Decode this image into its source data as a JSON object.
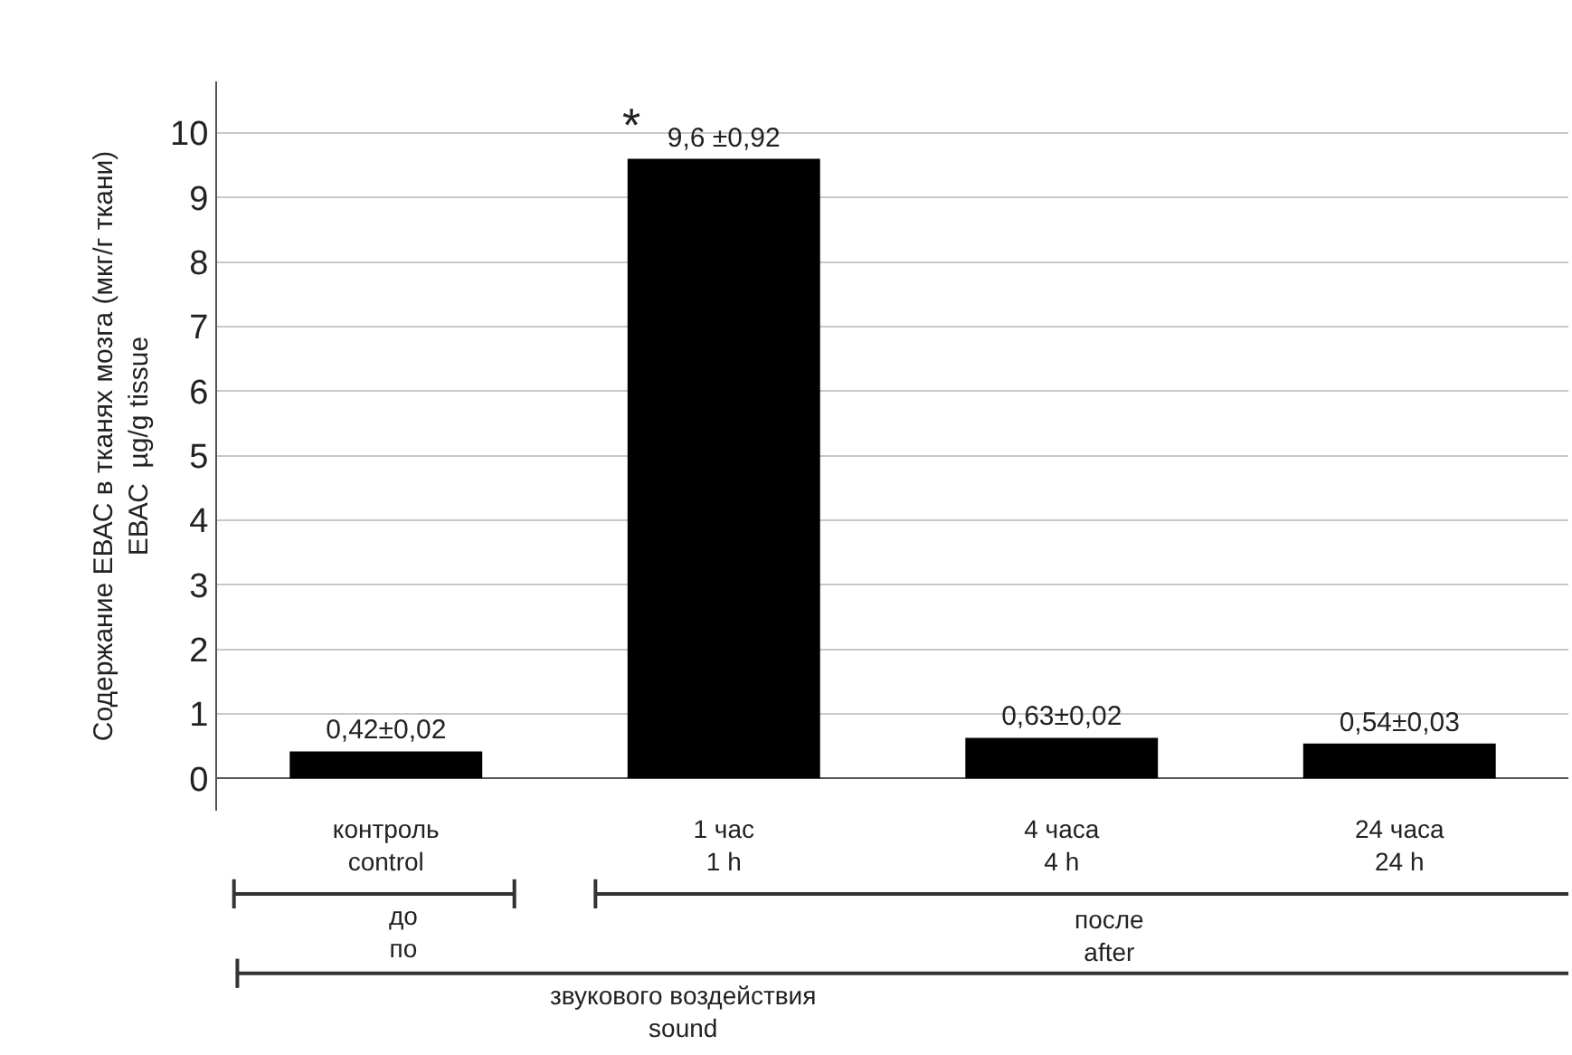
{
  "chart_data": {
    "type": "bar",
    "ylabel": "Содержание ЕВАС в тканях мозга (мкг/г ткани)\nЕВАС  µg/g tissue",
    "categories": [
      "контроль\ncontrol",
      "1 час\n1 h",
      "4 часа\n4 h",
      "24 часа\n24 h"
    ],
    "values": [
      0.42,
      9.6,
      0.63,
      0.54
    ],
    "value_labels": [
      "0,42±0,02",
      "9,6 ±0,92",
      "0,63±0,02",
      "0,54±0,03"
    ],
    "color": "#000000",
    "ylim": [
      -0.5,
      10.8
    ],
    "yticks": [
      0,
      1,
      2,
      3,
      4,
      5,
      6,
      7,
      8,
      9,
      10
    ],
    "grid": "y",
    "legend": false,
    "annotations": [
      {
        "text": "*",
        "x": "1 час\n1 h",
        "y": 9.6
      },
      "до\nпо",
      "после\nafter",
      "звукового воздействия\nsound"
    ]
  }
}
